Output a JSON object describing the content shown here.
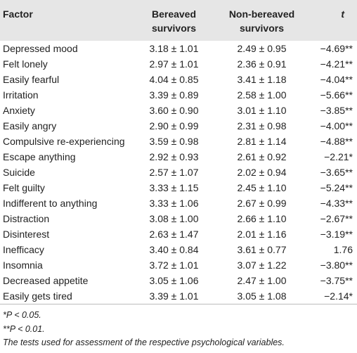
{
  "table": {
    "header": [
      "Factor",
      "Bereaved survivors",
      "Non-bereaved survivors",
      "t"
    ],
    "rows": [
      [
        "Depressed mood",
        "3.18 ± 1.01",
        "2.49 ± 0.95",
        "−4.69**"
      ],
      [
        "Felt lonely",
        "2.97 ± 1.01",
        "2.36 ± 0.91",
        "−4.21**"
      ],
      [
        "Easily fearful",
        "4.04 ± 0.85",
        "3.41 ± 1.18",
        "−4.04**"
      ],
      [
        "Irritation",
        "3.39 ± 0.89",
        "2.58 ± 1.00",
        "−5.66**"
      ],
      [
        "Anxiety",
        "3.60 ± 0.90",
        "3.01 ± 1.10",
        "−3.85**"
      ],
      [
        "Easily angry",
        "2.90 ± 0.99",
        "2.31 ± 0.98",
        "−4.00**"
      ],
      [
        "Compulsive re-experiencing",
        "3.59 ± 0.98",
        "2.81 ± 1.14",
        "−4.88**"
      ],
      [
        "Escape anything",
        "2.92 ± 0.93",
        "2.61 ± 0.92",
        "−2.21*"
      ],
      [
        "Suicide",
        "2.57 ± 1.07",
        "2.02 ± 0.94",
        "−3.65**"
      ],
      [
        "Felt guilty",
        "3.33 ± 1.15",
        "2.45 ± 1.10",
        "−5.24**"
      ],
      [
        "Indifferent to anything",
        "3.33 ± 1.06",
        "2.67 ± 0.99",
        "−4.33**"
      ],
      [
        "Distraction",
        "3.08 ± 1.00",
        "2.66 ± 1.10",
        "−2.67**"
      ],
      [
        "Disinterest",
        "2.63 ± 1.47",
        "2.01 ± 1.16",
        "−3.19**"
      ],
      [
        "Inefficacy",
        "3.40 ± 0.84",
        "3.61 ± 0.77",
        "1.76"
      ],
      [
        "Insomnia",
        "3.72 ± 1.01",
        "3.07 ± 1.22",
        "−3.80**"
      ],
      [
        "Decreased appetite",
        "3.05 ± 1.06",
        "2.47 ± 1.00",
        "−3.75**"
      ],
      [
        "Easily gets tired",
        "3.39 ± 1.01",
        "3.05 ± 1.08",
        "−2.14*"
      ]
    ]
  },
  "footnotes": [
    "*P < 0.05.",
    "**P < 0.01.",
    "The tests used for assessment of the respective psychological variables."
  ]
}
